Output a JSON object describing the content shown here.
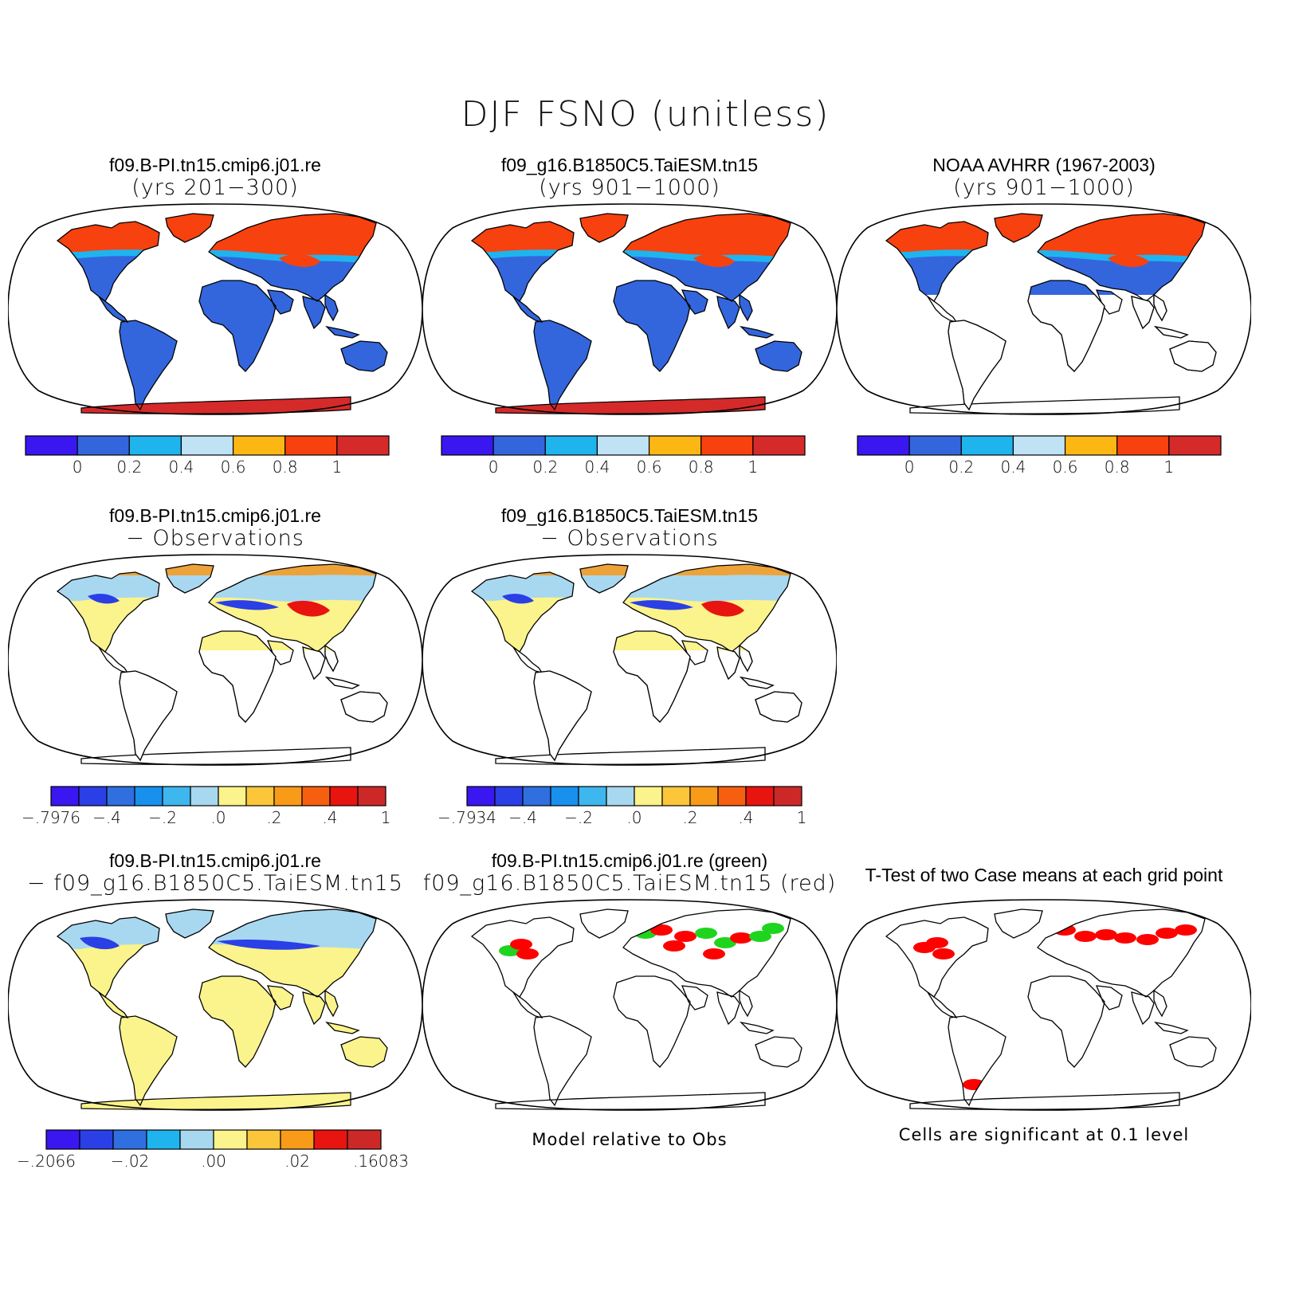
{
  "title": "DJF FSNO (unitless)",
  "panels": [
    {
      "id": "p1",
      "title_line1": "f09.B-PI.tn15.cmip6.j01.re",
      "title_line2": "(yrs 201−300)",
      "mode": "abs",
      "sh": true,
      "nsouth": "full"
    },
    {
      "id": "p2",
      "title_line1": "f09_g16.B1850C5.TaiESM.tn15",
      "title_line2": "(yrs 901−1000)",
      "mode": "abs",
      "sh": true,
      "nsouth": "full"
    },
    {
      "id": "p3",
      "title_line1": "NOAA AVHRR (1967-2003)",
      "title_line2": "(yrs 901−1000)",
      "mode": "abs",
      "sh": false,
      "nsouth": "cut"
    },
    {
      "id": "p4",
      "title_line1": "f09.B-PI.tn15.cmip6.j01.re",
      "title_line2": "− Observations",
      "mode": "diff",
      "sh": false,
      "nsouth": "cut"
    },
    {
      "id": "p5",
      "title_line1": "f09_g16.B1850C5.TaiESM.tn15",
      "title_line2": "− Observations",
      "mode": "diff",
      "sh": false,
      "nsouth": "cut"
    },
    {
      "id": "p6",
      "title_line1": "f09.B-PI.tn15.cmip6.j01.re",
      "title_line2": "− f09_g16.B1850C5.TaiESM.tn15",
      "mode": "casediff",
      "sh": true,
      "nsouth": "full"
    },
    {
      "id": "p7",
      "title_line1": "f09.B-PI.tn15.cmip6.j01.re (green)",
      "title_line2": "f09_g16.B1850C5.TaiESM.tn15 (red)",
      "mode": "compare",
      "sh": false,
      "nsouth": "full"
    },
    {
      "id": "p8",
      "title_line1": "T-Test of two Case means at each grid point",
      "title_line2": "",
      "mode": "ttest",
      "sh": false,
      "nsouth": "full"
    }
  ],
  "colorbars": [
    {
      "id": "cb1",
      "colors": [
        "#3a16f0",
        "#3366dd",
        "#1fb4ee",
        "#bfe2f4",
        "#fdb714",
        "#f7410f",
        "#d52a2a"
      ],
      "labels": [
        "0",
        "0.2",
        "0.4",
        "0.6",
        "0.8",
        "1"
      ]
    },
    {
      "id": "cb2",
      "colors": [
        "#3a16f0",
        "#3366dd",
        "#1fb4ee",
        "#bfe2f4",
        "#fdb714",
        "#f7410f",
        "#d52a2a"
      ],
      "labels": [
        "0",
        "0.2",
        "0.4",
        "0.6",
        "0.8",
        "1"
      ]
    },
    {
      "id": "cb3",
      "colors": [
        "#3a16f0",
        "#3366dd",
        "#1fb4ee",
        "#bfe2f4",
        "#fdb714",
        "#f7410f",
        "#d52a2a"
      ],
      "labels": [
        "0",
        "0.2",
        "0.4",
        "0.6",
        "0.8",
        "1"
      ]
    },
    {
      "id": "cb4",
      "colors": [
        "#3a16f0",
        "#2a3fe6",
        "#2f6fe0",
        "#1890ee",
        "#3db7ee",
        "#a8d8f0",
        "#fbf38b",
        "#fbc63a",
        "#f99a19",
        "#f65f10",
        "#e8140f",
        "#cc2828"
      ],
      "labels": [
        "−.7976",
        "−.4",
        "−.2",
        ".0",
        ".2",
        ".4",
        "1"
      ]
    },
    {
      "id": "cb5",
      "colors": [
        "#3a16f0",
        "#2a3fe6",
        "#2f6fe0",
        "#1890ee",
        "#3db7ee",
        "#a8d8f0",
        "#fbf38b",
        "#fbc63a",
        "#f99a19",
        "#f65f10",
        "#e8140f",
        "#cc2828"
      ],
      "labels": [
        "−.7934",
        "−.4",
        "−.2",
        ".0",
        ".2",
        ".4",
        "1"
      ]
    },
    {
      "id": "cb6",
      "colors": [
        "#3a16f0",
        "#2a3fe6",
        "#2f6fe0",
        "#1fb4ee",
        "#a8d8f0",
        "#fbf38b",
        "#fbc63a",
        "#f99a19",
        "#e8140f",
        "#cc2828"
      ],
      "labels": [
        "−.2066",
        "−.02",
        ".00",
        ".02",
        ".16083"
      ]
    }
  ],
  "captions": {
    "compare": "Model relative to Obs",
    "ttest": "Cells are significant at 0.1 level"
  },
  "colors": {
    "land_outline": "#000000",
    "nh_snow": "#f7410f",
    "nh_edge": "#1fb4ee",
    "land_low": "#3366dd",
    "antarctica": "#d52a2a",
    "diff_yellow": "#fbf38b",
    "diff_blue": "#a8d8f0",
    "diff_dark": "#2a3fe6",
    "diff_red": "#e8140f",
    "sig_red": "#ff0000",
    "sig_green": "#1fd41f"
  }
}
